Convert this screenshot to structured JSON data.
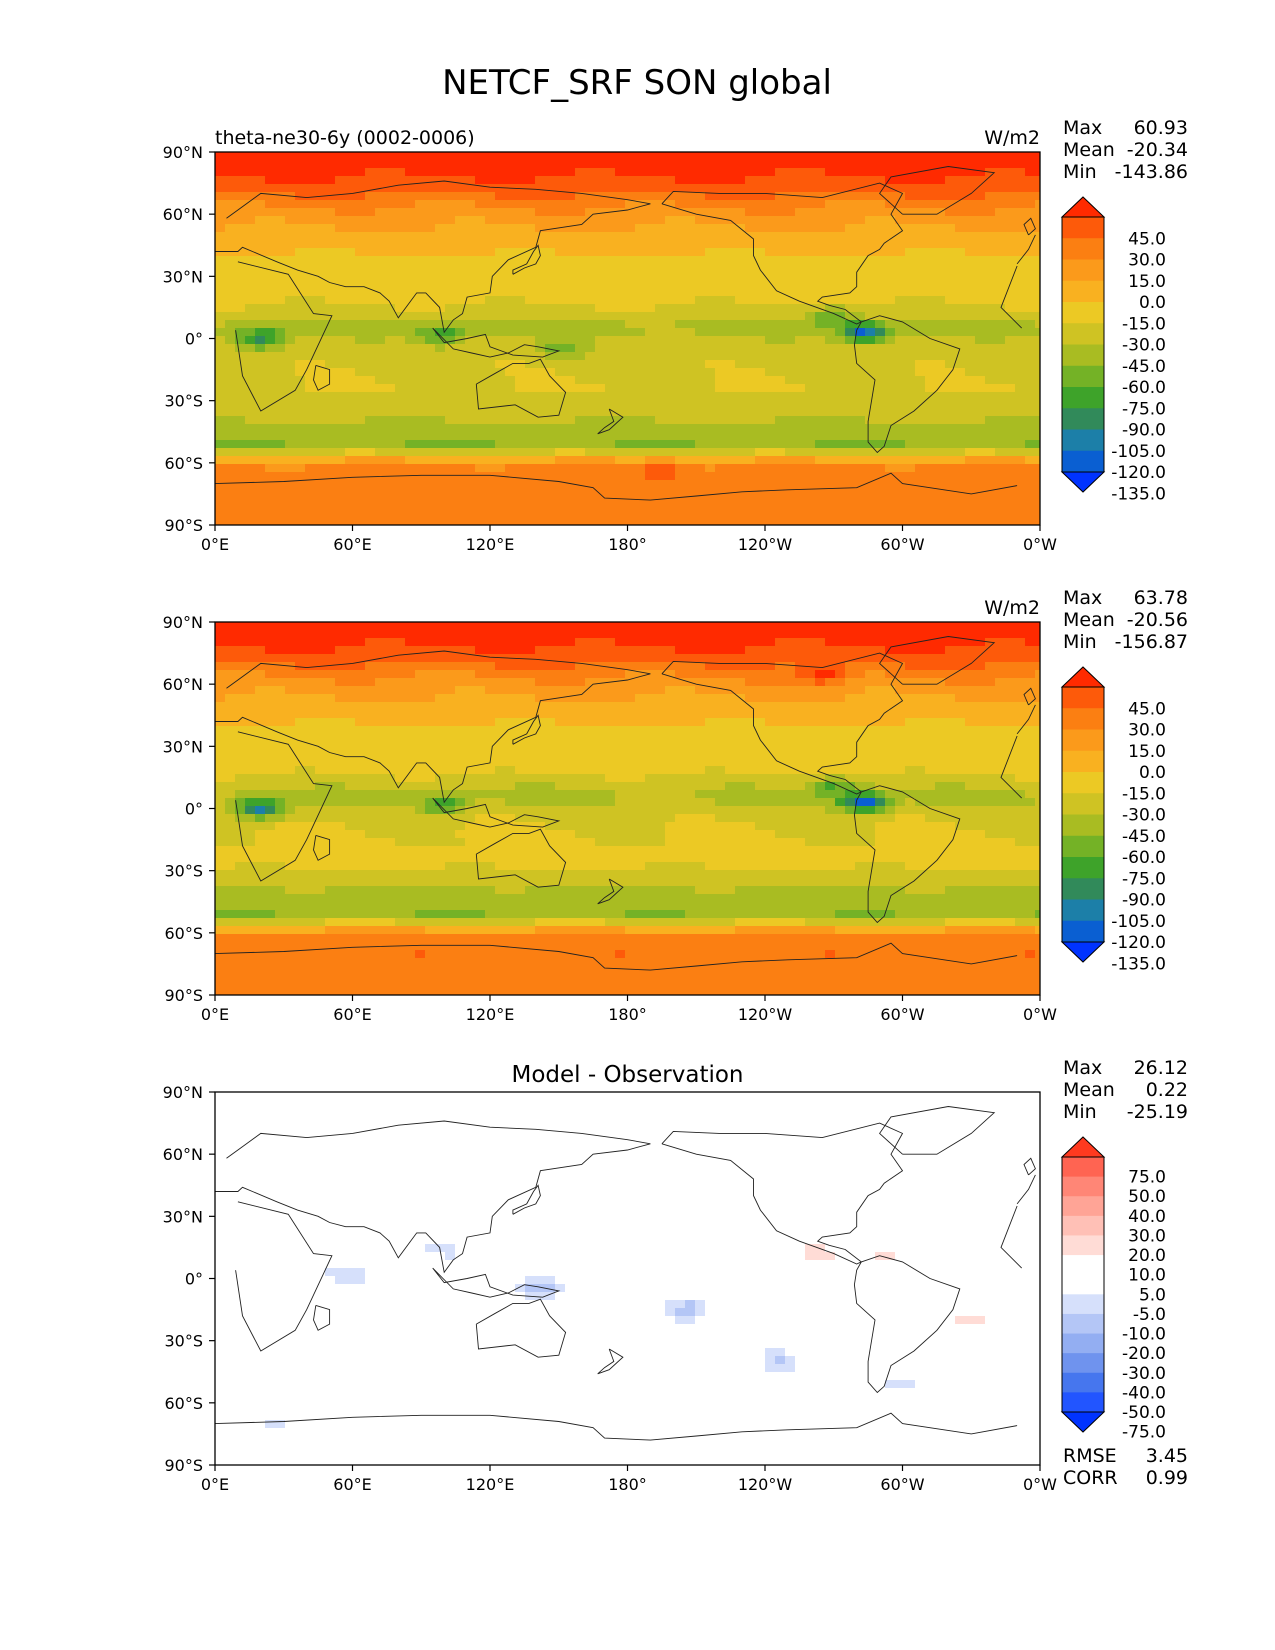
{
  "figure": {
    "title": "NETCF_SRF SON global"
  },
  "colors": {
    "panel_palette": [
      "#0033ff",
      "#0a5fd2",
      "#1c7fa8",
      "#318a5a",
      "#3ea32a",
      "#74b226",
      "#a9bc22",
      "#cfc323",
      "#ecc924",
      "#f9b120",
      "#fb9a1b",
      "#fb7f12",
      "#fd5a0a",
      "#ff2a00"
    ],
    "diff_palette": [
      "#0033ff",
      "#2255ff",
      "#4676ee",
      "#6f93ee",
      "#93aef2",
      "#b4c6f6",
      "#d6e0fb",
      "#ffffff",
      "#ffffff",
      "#ffdcd6",
      "#ffc0b6",
      "#ffa496",
      "#ff8676",
      "#ff6452",
      "#ff3a1f"
    ]
  },
  "chart_data": [
    {
      "type": "heatmap",
      "name": "model",
      "title_left": "theta-ne30-6y (0002-0006)",
      "title_center": "",
      "units": "W/m2",
      "stats": [
        {
          "label": "Max",
          "value": "60.93"
        },
        {
          "label": "Mean",
          "value": "-20.34"
        },
        {
          "label": "Min",
          "value": "-143.86"
        }
      ],
      "x_ticks": [
        "0°E",
        "60°E",
        "120°E",
        "180°",
        "120°W",
        "60°W",
        "0°W"
      ],
      "y_ticks": [
        "90°N",
        "60°N",
        "30°N",
        "0°",
        "30°S",
        "60°S",
        "90°S"
      ],
      "colorbar_levels": [
        "45.0",
        "30.0",
        "15.0",
        "0.0",
        "-15.0",
        "-30.0",
        "-45.0",
        "-60.0",
        "-75.0",
        "-90.0",
        "-105.0",
        "-120.0",
        "-135.0"
      ],
      "zonal_profile": [
        {
          "lat": 90,
          "v": 50
        },
        {
          "lat": 80,
          "v": 48
        },
        {
          "lat": 72,
          "v": 35
        },
        {
          "lat": 62,
          "v": 12
        },
        {
          "lat": 50,
          "v": -5
        },
        {
          "lat": 35,
          "v": -20
        },
        {
          "lat": 20,
          "v": -25
        },
        {
          "lat": 10,
          "v": -40
        },
        {
          "lat": 5,
          "v": -55
        },
        {
          "lat": 0,
          "v": -40
        },
        {
          "lat": -10,
          "v": -35
        },
        {
          "lat": -25,
          "v": -30
        },
        {
          "lat": -40,
          "v": -45
        },
        {
          "lat": -52,
          "v": -60
        },
        {
          "lat": -57,
          "v": -15
        },
        {
          "lat": -62,
          "v": 20
        },
        {
          "lat": -72,
          "v": 25
        },
        {
          "lat": -90,
          "v": 18
        }
      ],
      "hotspots": [
        {
          "lon": 20,
          "lat": 0,
          "v": -110
        },
        {
          "lon": 100,
          "lat": 2,
          "v": -95
        },
        {
          "lon": 283,
          "lat": 3,
          "v": -140
        },
        {
          "lon": 150,
          "lat": -5,
          "v": -75
        },
        {
          "lon": 270,
          "lat": 10,
          "v": -80
        },
        {
          "lon": 195,
          "lat": -64,
          "v": 40
        }
      ],
      "rmse": null,
      "corr": null
    },
    {
      "type": "heatmap",
      "name": "observation",
      "title_left": "",
      "title_center": "",
      "units": "W/m2",
      "stats": [
        {
          "label": "Max",
          "value": "63.78"
        },
        {
          "label": "Mean",
          "value": "-20.56"
        },
        {
          "label": "Min",
          "value": "-156.87"
        }
      ],
      "x_ticks": [
        "0°E",
        "60°E",
        "120°E",
        "180°",
        "120°W",
        "60°W",
        "0°W"
      ],
      "y_ticks": [
        "90°N",
        "60°N",
        "30°N",
        "0°",
        "30°S",
        "60°S",
        "90°S"
      ],
      "colorbar_levels": [
        "45.0",
        "30.0",
        "15.0",
        "0.0",
        "-15.0",
        "-30.0",
        "-45.0",
        "-60.0",
        "-75.0",
        "-90.0",
        "-105.0",
        "-120.0",
        "-135.0"
      ],
      "zonal_profile": [
        {
          "lat": 90,
          "v": 50
        },
        {
          "lat": 80,
          "v": 48
        },
        {
          "lat": 72,
          "v": 35
        },
        {
          "lat": 62,
          "v": 12
        },
        {
          "lat": 50,
          "v": -5
        },
        {
          "lat": 35,
          "v": -20
        },
        {
          "lat": 20,
          "v": -24
        },
        {
          "lat": 10,
          "v": -42
        },
        {
          "lat": 5,
          "v": -50
        },
        {
          "lat": 0,
          "v": -38
        },
        {
          "lat": -10,
          "v": -30
        },
        {
          "lat": -25,
          "v": -25
        },
        {
          "lat": -40,
          "v": -48
        },
        {
          "lat": -52,
          "v": -58
        },
        {
          "lat": -57,
          "v": -12
        },
        {
          "lat": -62,
          "v": 22
        },
        {
          "lat": -72,
          "v": 25
        },
        {
          "lat": -90,
          "v": 18
        }
      ],
      "hotspots": [
        {
          "lon": 20,
          "lat": 0,
          "v": -120
        },
        {
          "lon": 100,
          "lat": 2,
          "v": -100
        },
        {
          "lon": 283,
          "lat": 3,
          "v": -150
        },
        {
          "lon": 270,
          "lat": 10,
          "v": -85
        },
        {
          "lon": 265,
          "lat": 65,
          "v": 55
        }
      ],
      "rmse": null,
      "corr": null
    },
    {
      "type": "heatmap",
      "name": "difference",
      "title_left": "",
      "title_center": "Model - Observation",
      "units": "",
      "stats": [
        {
          "label": "Max",
          "value": "26.12"
        },
        {
          "label": "Mean",
          "value": "0.22"
        },
        {
          "label": "Min",
          "value": "-25.19"
        }
      ],
      "x_ticks": [
        "0°E",
        "60°E",
        "120°E",
        "180°",
        "120°W",
        "60°W",
        "0°W"
      ],
      "y_ticks": [
        "90°N",
        "60°N",
        "30°N",
        "0°",
        "30°S",
        "60°S",
        "90°S"
      ],
      "colorbar_levels": [
        "75.0",
        "50.0",
        "40.0",
        "30.0",
        "20.0",
        "10.0",
        "5.0",
        "-5.0",
        "-10.0",
        "-20.0",
        "-30.0",
        "-40.0",
        "-50.0",
        "-75.0"
      ],
      "blobs": [
        {
          "lon": 262,
          "lat": 12,
          "v": 20
        },
        {
          "lon": 290,
          "lat": 10,
          "v": 12
        },
        {
          "lon": 330,
          "lat": -20,
          "v": 15
        },
        {
          "lon": 140,
          "lat": -5,
          "v": -15
        },
        {
          "lon": 205,
          "lat": -15,
          "v": -14
        },
        {
          "lon": 60,
          "lat": 2,
          "v": -10
        },
        {
          "lon": 100,
          "lat": 15,
          "v": -8
        },
        {
          "lon": 245,
          "lat": -40,
          "v": -10
        },
        {
          "lon": 180,
          "lat": -30,
          "v": 8
        },
        {
          "lon": 220,
          "lat": -35,
          "v": 8
        },
        {
          "lon": 40,
          "lat": -40,
          "v": 8
        },
        {
          "lon": 120,
          "lat": -20,
          "v": 7
        },
        {
          "lon": 300,
          "lat": -50,
          "v": -8
        },
        {
          "lon": 30,
          "lat": -70,
          "v": -8
        },
        {
          "lon": 250,
          "lat": 30,
          "v": 6
        }
      ],
      "rmse": "3.45",
      "corr": "0.99"
    }
  ],
  "footer": {
    "rmse_label": "RMSE",
    "corr_label": "CORR"
  }
}
